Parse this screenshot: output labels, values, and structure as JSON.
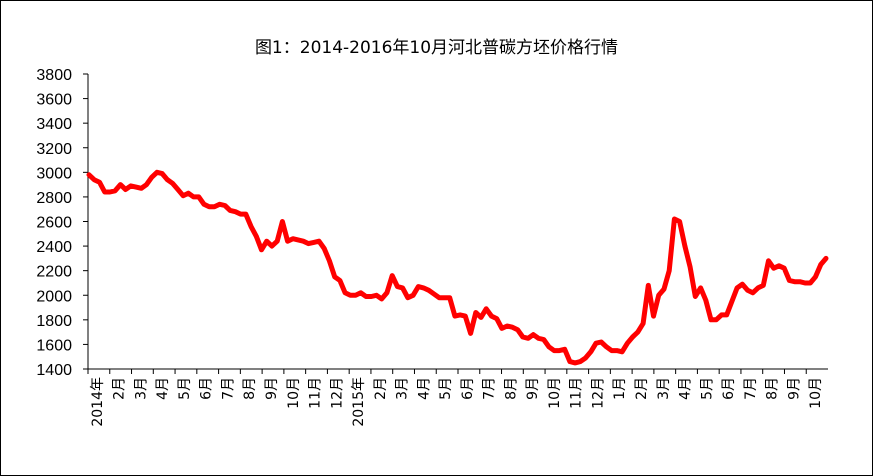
{
  "chart_data": {
    "type": "line",
    "title": "图1：2014-2016年10月河北普碳方坯价格行情",
    "ylim": [
      1400,
      3800
    ],
    "yticks": [
      1400,
      1600,
      1800,
      2000,
      2200,
      2400,
      2600,
      2800,
      3000,
      3200,
      3400,
      3600,
      3800
    ],
    "grid": false,
    "legend": "none",
    "line_color": "#ff0000",
    "x_labels": [
      "2014年",
      "2月",
      "3月",
      "4月",
      "5月",
      "6月",
      "7月",
      "8月",
      "9月",
      "10月",
      "11月",
      "12月",
      "2015年",
      "2月",
      "3月",
      "4月",
      "5月",
      "6月",
      "7月",
      "8月",
      "9月",
      "10月",
      "11月",
      "12月",
      "1月",
      "2月",
      "3月",
      "4月",
      "5月",
      "6月",
      "7月",
      "8月",
      "9月",
      "10月"
    ],
    "series": [
      {
        "values": [
          2980,
          2940,
          2920,
          2840,
          2840,
          2850,
          2900,
          2860,
          2890,
          2880,
          2870,
          2900,
          2960,
          3000,
          2990,
          2940,
          2910,
          2860,
          2810,
          2830,
          2800,
          2800,
          2740,
          2720,
          2720,
          2740,
          2730,
          2690,
          2680,
          2660,
          2660,
          2560,
          2480,
          2370,
          2440,
          2400,
          2440,
          2600,
          2440,
          2460,
          2450,
          2440,
          2420,
          2430,
          2440,
          2380,
          2280,
          2150,
          2120,
          2020,
          2000,
          2000,
          2020,
          1990,
          1990,
          2000,
          1970,
          2020,
          2160,
          2070,
          2060,
          1980,
          2000,
          2070,
          2060,
          2040,
          2010,
          1980,
          1980,
          1980,
          1830,
          1840,
          1830,
          1690,
          1860,
          1820,
          1890,
          1830,
          1810,
          1730,
          1750,
          1740,
          1720,
          1660,
          1650,
          1680,
          1650,
          1640,
          1580,
          1550,
          1550,
          1560,
          1460,
          1450,
          1460,
          1490,
          1540,
          1610,
          1620,
          1580,
          1550,
          1550,
          1540,
          1610,
          1660,
          1700,
          1770,
          2080,
          1830,
          2000,
          2050,
          2200,
          2620,
          2600,
          2400,
          2230,
          1990,
          2060,
          1960,
          1800,
          1800,
          1840,
          1840,
          1950,
          2060,
          2090,
          2040,
          2020,
          2060,
          2080,
          2280,
          2220,
          2240,
          2220,
          2120,
          2110,
          2110,
          2100,
          2100,
          2150,
          2250,
          2300
        ]
      }
    ]
  }
}
